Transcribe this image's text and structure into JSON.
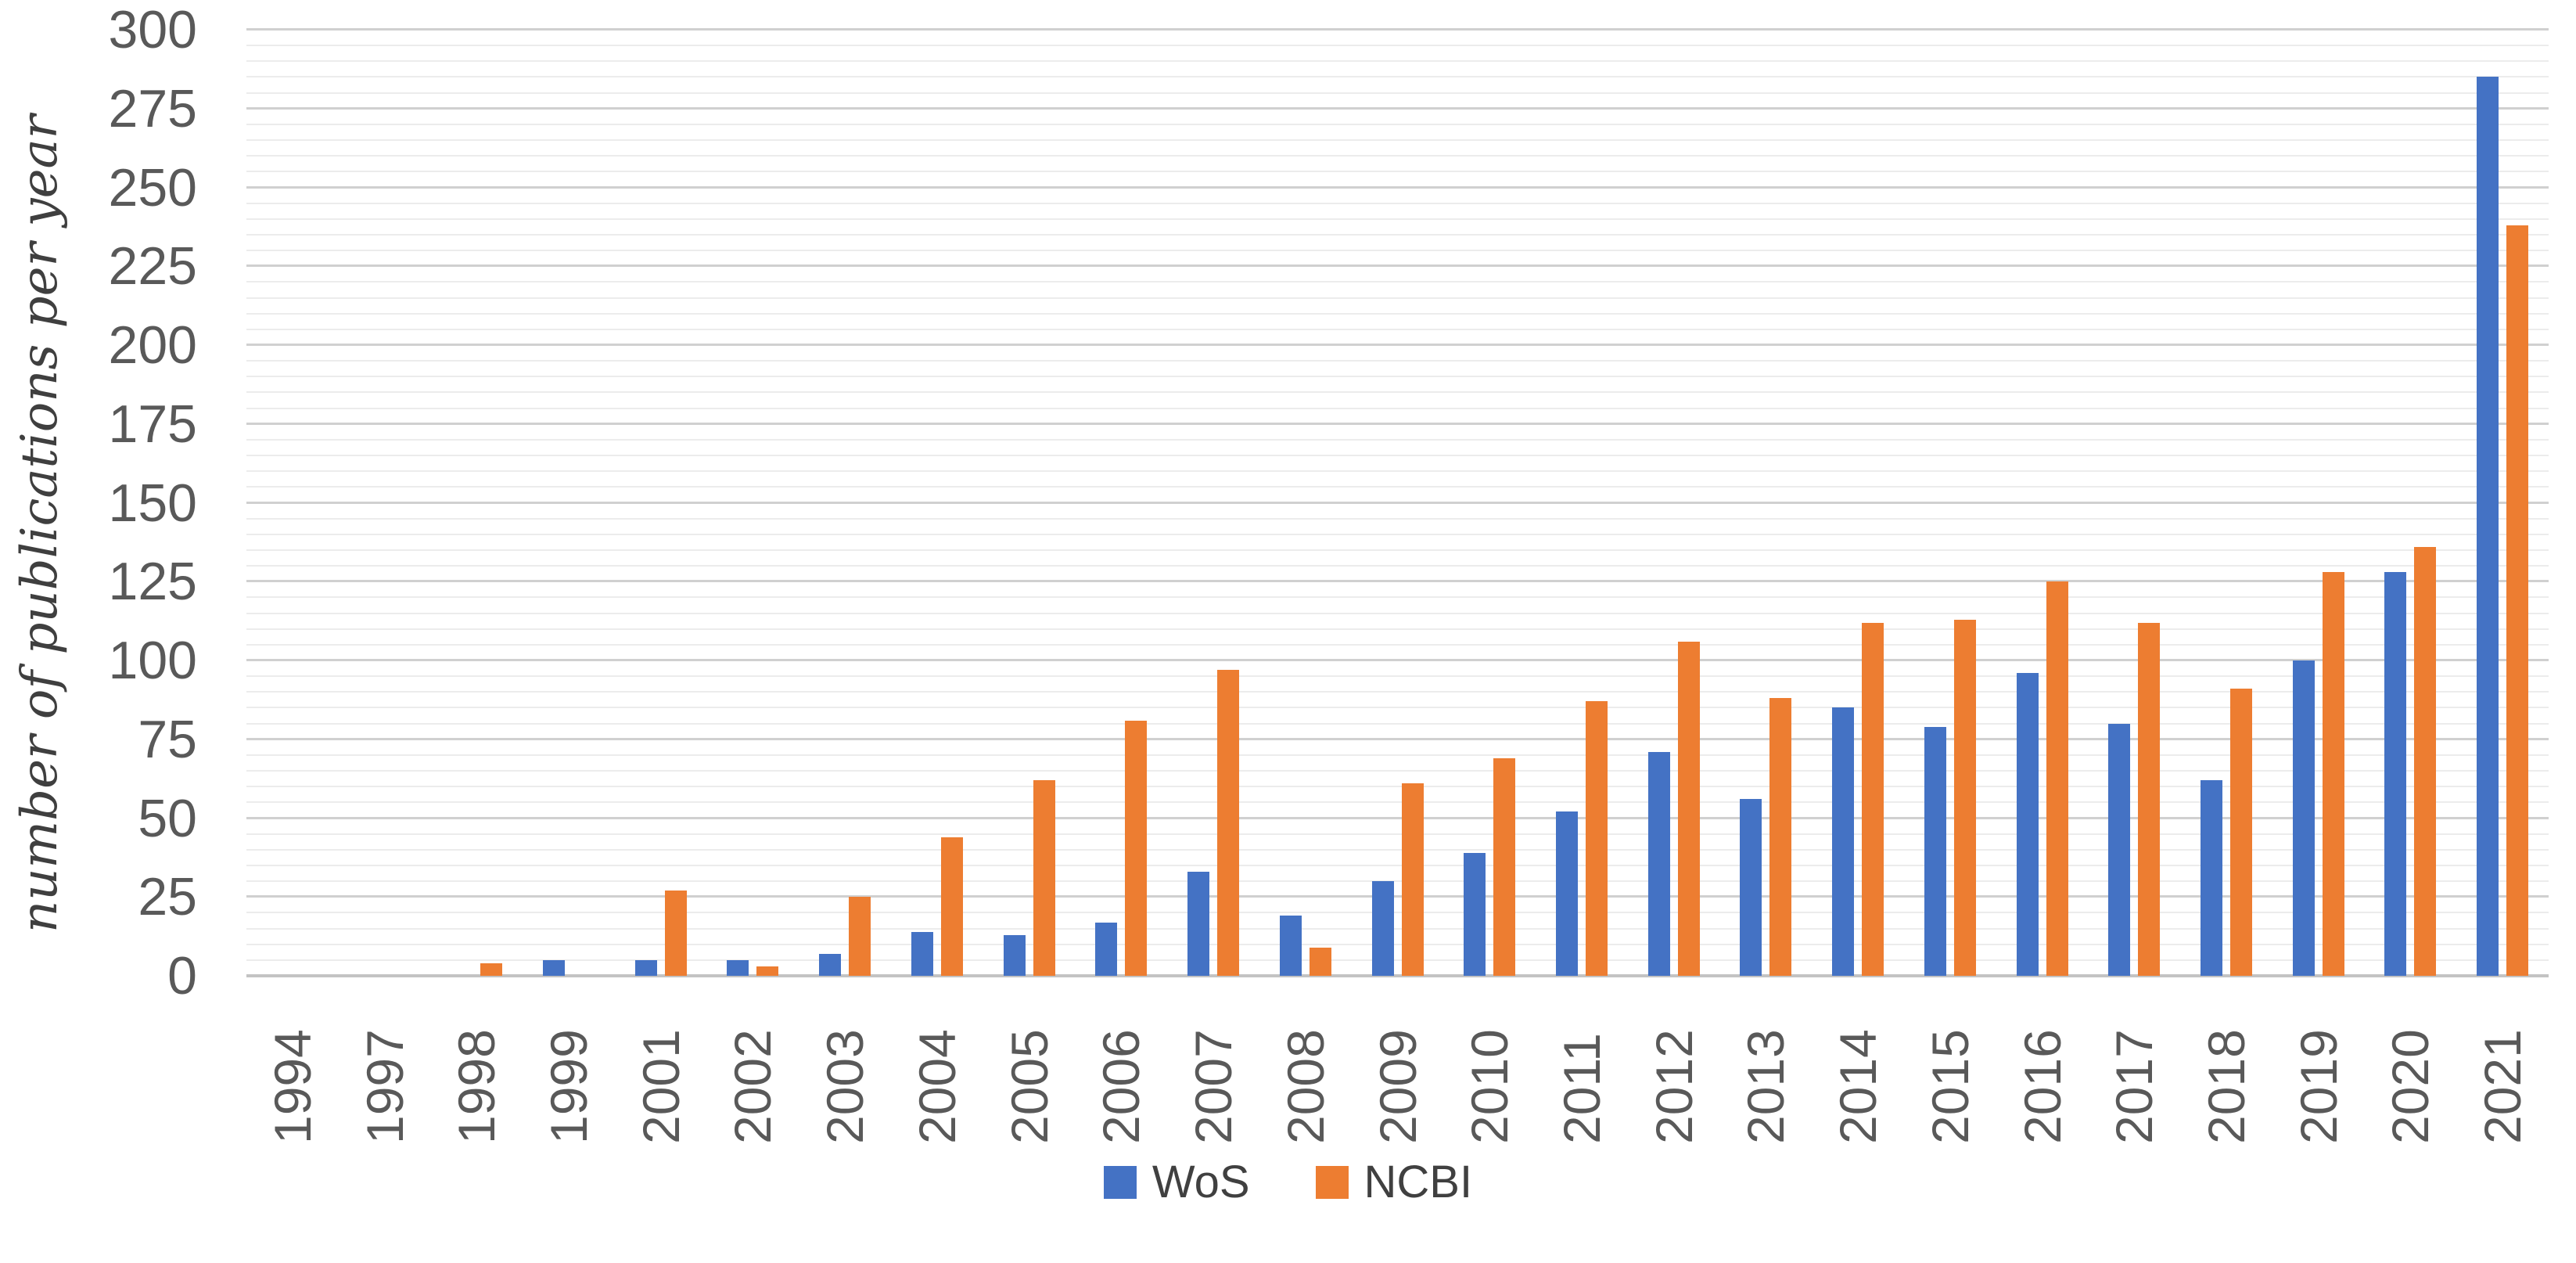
{
  "chart_data": {
    "type": "bar",
    "title": "",
    "xlabel": "",
    "ylabel": "number of publications per year",
    "ylim": [
      0,
      300
    ],
    "ytick_step": 25,
    "minor_gridline_step": 5,
    "grid": "horizontal",
    "legend_position": "bottom",
    "yticks": [
      "0",
      "25",
      "50",
      "75",
      "100",
      "125",
      "150",
      "175",
      "200",
      "225",
      "250",
      "275",
      "300"
    ],
    "categories": [
      "1994",
      "1997",
      "1998",
      "1999",
      "2001",
      "2002",
      "2003",
      "2004",
      "2005",
      "2006",
      "2007",
      "2008",
      "2009",
      "2010",
      "2011",
      "2012",
      "2013",
      "2014",
      "2015",
      "2016",
      "2017",
      "2018",
      "2019",
      "2020",
      "2021"
    ],
    "series": [
      {
        "name": "WoS",
        "color": "#4472C4",
        "values": [
          0,
          0,
          0,
          5,
          5,
          5,
          7,
          14,
          13,
          17,
          33,
          19,
          30,
          39,
          52,
          71,
          56,
          85,
          79,
          96,
          80,
          62,
          100,
          128,
          285
        ]
      },
      {
        "name": "NCBI",
        "color": "#ED7D31",
        "values": [
          0,
          0,
          4,
          0,
          27,
          3,
          25,
          44,
          62,
          81,
          97,
          9,
          61,
          69,
          87,
          106,
          88,
          112,
          113,
          125,
          112,
          91,
          128,
          136,
          238
        ]
      }
    ]
  },
  "legend": {
    "items": [
      {
        "label": "WoS",
        "color": "#4472C4"
      },
      {
        "label": "NCBI",
        "color": "#ED7D31"
      }
    ]
  },
  "colors": {
    "background": "#ffffff",
    "major_gridline": "#d0d0d0",
    "minor_gridline": "#ececec",
    "axis_text": "#595959"
  }
}
